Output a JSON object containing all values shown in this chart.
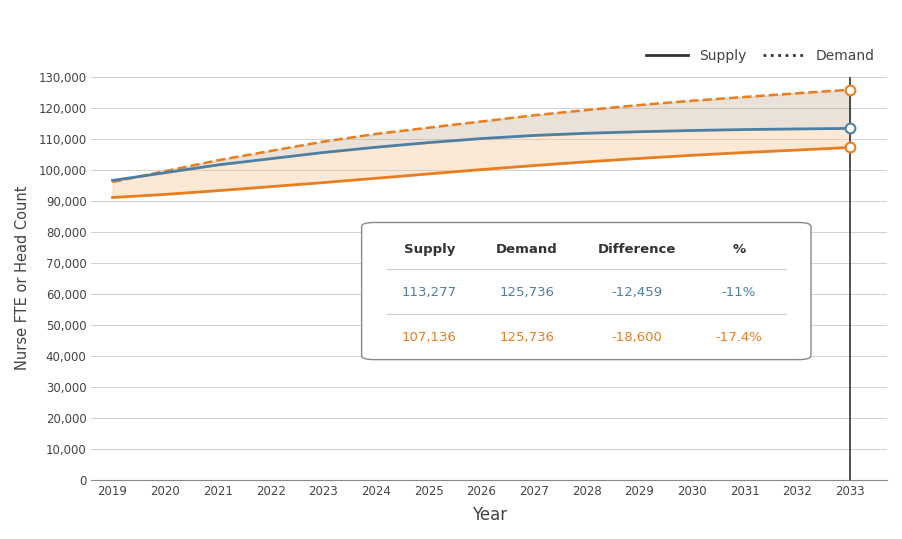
{
  "years": [
    2019,
    2020,
    2021,
    2022,
    2023,
    2024,
    2025,
    2026,
    2027,
    2028,
    2029,
    2030,
    2031,
    2032,
    2033
  ],
  "supply_high": [
    96500,
    99000,
    101500,
    103500,
    105500,
    107200,
    108700,
    110000,
    111000,
    111700,
    112200,
    112600,
    112900,
    113100,
    113277
  ],
  "supply_low": [
    91000,
    92000,
    93200,
    94500,
    95800,
    97200,
    98600,
    100000,
    101300,
    102500,
    103600,
    104600,
    105500,
    106300,
    107136
  ],
  "demand": [
    96000,
    99500,
    103000,
    106000,
    109000,
    111500,
    113500,
    115500,
    117500,
    119200,
    120800,
    122200,
    123400,
    124600,
    125736
  ],
  "color_supply_high": "#4d7fa3",
  "color_supply_low": "#e87e1e",
  "color_demand_line": "#e87e1e",
  "color_legend_line": "#333333",
  "color_fill_upper": "#c8b49a",
  "color_fill_lower": "#f5c89a",
  "ylabel": "Nurse FTE or Head Count",
  "xlabel": "Year",
  "ylim": [
    0,
    130000
  ],
  "title_supply": "Supply",
  "title_demand": "Demand",
  "table_headers": [
    "Supply",
    "Demand",
    "Difference",
    "%"
  ],
  "table_row1": [
    "113,277",
    "125,736",
    "-12,459",
    "-11%"
  ],
  "table_row2": [
    "107,136",
    "125,736",
    "-18,600",
    "-17.4%"
  ],
  "color_row1": "#4d7fa3",
  "color_row2": "#e87e1e"
}
